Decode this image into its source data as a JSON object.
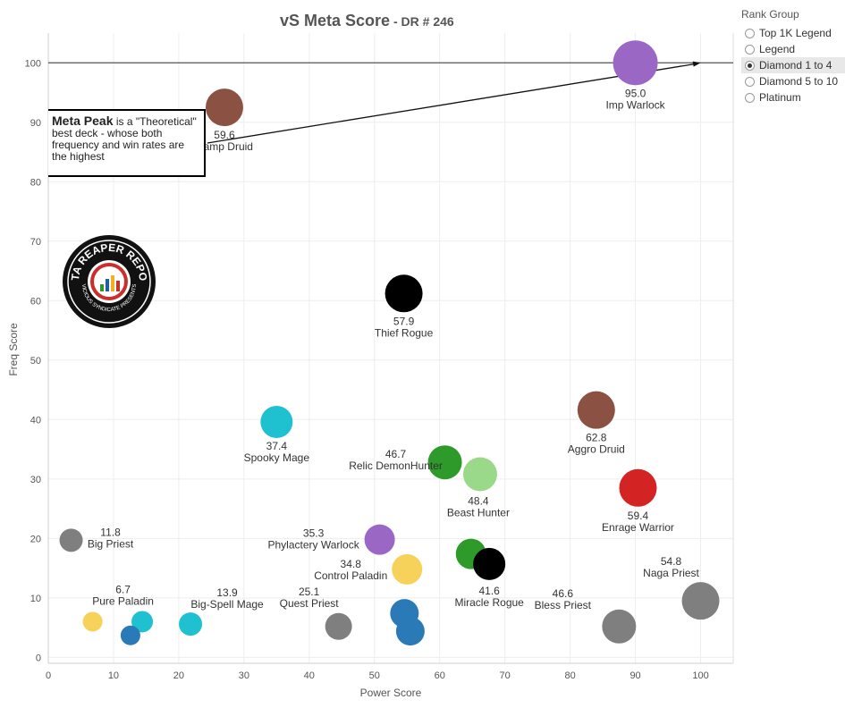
{
  "chart_data": {
    "type": "scatter",
    "title": "vS Meta Score",
    "subtitle": "- DR # 246",
    "xlabel": "Power Score",
    "ylabel": "Freq Score",
    "xlim": [
      0,
      105
    ],
    "ylim": [
      -1,
      105
    ],
    "xticks": [
      0,
      10,
      20,
      30,
      40,
      50,
      60,
      70,
      80,
      90,
      100
    ],
    "yticks": [
      0,
      10,
      20,
      30,
      40,
      50,
      60,
      70,
      80,
      90,
      100
    ],
    "grid": true,
    "reference_line_y": 100,
    "points": [
      {
        "x": 90,
        "y": 100,
        "color": "#9b67c4",
        "size": 25,
        "value": "95.0",
        "name": "Imp Warlock"
      },
      {
        "x": 27,
        "y": 92.5,
        "color": "#8b5143",
        "size": 21,
        "value": "59.6",
        "name": "Ramp Druid"
      },
      {
        "x": 54.5,
        "y": 61.2,
        "color": "#000000",
        "size": 21,
        "value": "57.9",
        "name": "Thief Rogue"
      },
      {
        "x": 35,
        "y": 39.6,
        "color": "#1fc1d1",
        "size": 18,
        "value": "37.4",
        "name": "Spooky Mage"
      },
      {
        "x": 84,
        "y": 41.6,
        "color": "#8b5143",
        "size": 21,
        "value": "62.8",
        "name": "Aggro Druid"
      },
      {
        "x": 60.8,
        "y": 32.8,
        "color": "#2e9a2a",
        "size": 19,
        "value": "46.7",
        "name": "Relic DemonHunter"
      },
      {
        "x": 66.2,
        "y": 30.8,
        "color": "#9ad88a",
        "size": 19,
        "value": "48.4",
        "name": "Beast Hunter"
      },
      {
        "x": 90.4,
        "y": 28.5,
        "color": "#d42323",
        "size": 21,
        "value": "59.4",
        "name": "Enrage Warrior"
      },
      {
        "x": 3.5,
        "y": 19.7,
        "color": "#7f7f7f",
        "size": 13,
        "value": "11.8",
        "name": "Big Priest"
      },
      {
        "x": 50.8,
        "y": 19.8,
        "color": "#9b67c4",
        "size": 17,
        "value": "35.3",
        "name": "Phylactery Warlock"
      },
      {
        "x": 55,
        "y": 14.8,
        "color": "#f7d25a",
        "size": 17,
        "value": "34.8",
        "name": "Control Paladin"
      },
      {
        "x": 64.8,
        "y": 17.4,
        "color": "#2e9a2a",
        "size": 17,
        "value": "",
        "name": ""
      },
      {
        "x": 67.6,
        "y": 15.7,
        "color": "#000000",
        "size": 18,
        "value": "41.6",
        "name": "Miracle Rogue"
      },
      {
        "x": 100,
        "y": 9.5,
        "color": "#7f7f7f",
        "size": 21,
        "value": "54.8",
        "name": "Naga Priest"
      },
      {
        "x": 87.5,
        "y": 5.2,
        "color": "#7f7f7f",
        "size": 19,
        "value": "46.6",
        "name": "Bless Priest"
      },
      {
        "x": 44.5,
        "y": 5.2,
        "color": "#7f7f7f",
        "size": 15,
        "value": "25.1",
        "name": "Quest Priest"
      },
      {
        "x": 6.8,
        "y": 6.0,
        "color": "#f7d25a",
        "size": 11,
        "value": "6.7",
        "name": "Pure Paladin"
      },
      {
        "x": 21.8,
        "y": 5.6,
        "color": "#1fc1d1",
        "size": 13,
        "value": "13.9",
        "name": "Big-Spell Mage"
      },
      {
        "x": 14.4,
        "y": 6.0,
        "color": "#1fc1d1",
        "size": 12,
        "value": "",
        "name": ""
      },
      {
        "x": 12.6,
        "y": 3.7,
        "color": "#2a7ab8",
        "size": 11,
        "value": "",
        "name": ""
      },
      {
        "x": 54.6,
        "y": 7.4,
        "color": "#2a7ab8",
        "size": 16,
        "value": "",
        "name": ""
      },
      {
        "x": 55.5,
        "y": 4.4,
        "color": "#2a7ab8",
        "size": 16,
        "value": "",
        "name": ""
      }
    ]
  },
  "annotation": {
    "bold": "Meta Peak",
    "text": " is a \"Theoretical\" best deck - whose both frequency and win rates are the highest"
  },
  "logo": {
    "text_top": "DATA REAPER REPORT",
    "text_bottom": "VICIOUS SYNDICATE PRESENTS"
  },
  "legend": {
    "title": "Rank Group",
    "options": [
      "Top 1K Legend",
      "Legend",
      "Diamond 1 to 4",
      "Diamond 5 to 10",
      "Platinum"
    ],
    "selected": "Diamond 1 to 4"
  }
}
